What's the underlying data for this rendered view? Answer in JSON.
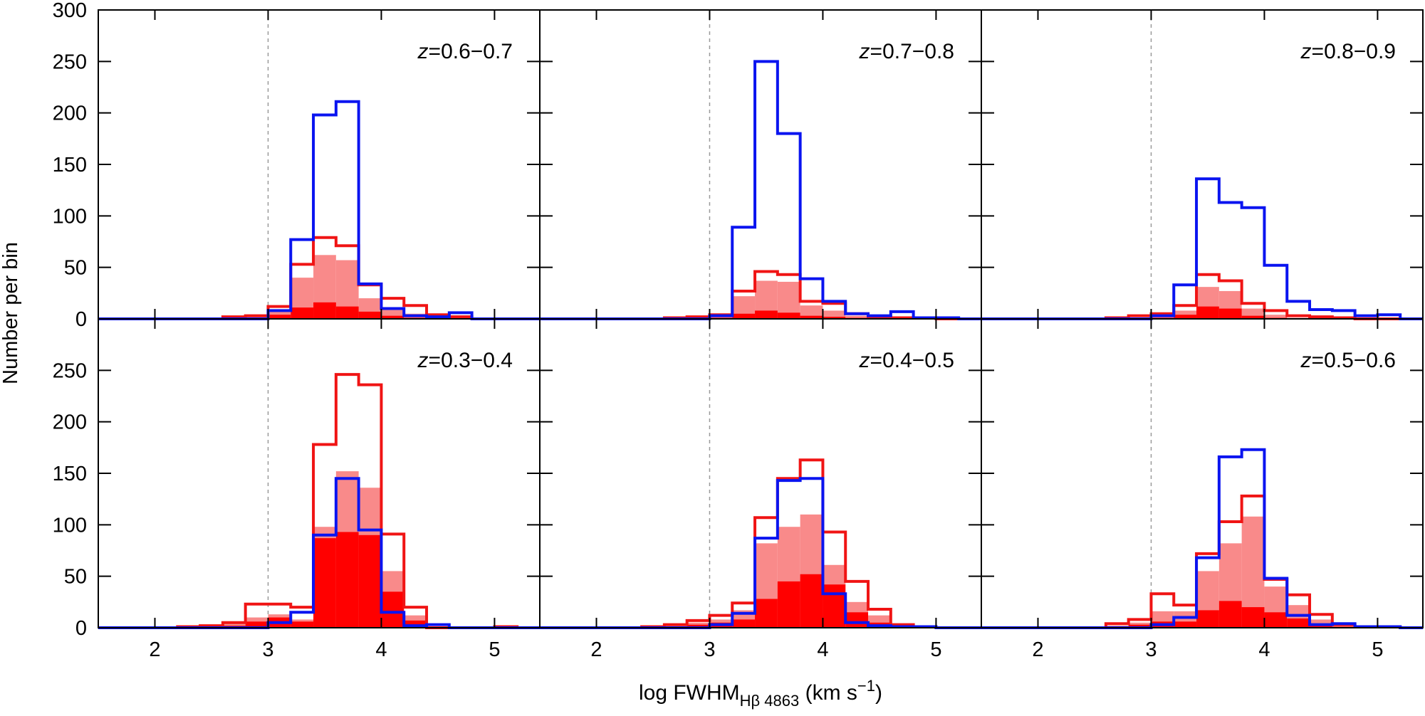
{
  "chart_data": {
    "type": "histogram-grid",
    "ylabel": "Number per bin",
    "xlabel": {
      "prefix": "log FWHM",
      "subscript": "Hβ 4863",
      "unit_prefix": " (km s",
      "unit_superscript": "−1",
      "unit_suffix": ")"
    },
    "xlim": [
      1.5,
      5.4
    ],
    "bin_edges": [
      1.6,
      1.8,
      2.0,
      2.2,
      2.4,
      2.6,
      2.8,
      3.0,
      3.2,
      3.4,
      3.6,
      3.8,
      4.0,
      4.2,
      4.4,
      4.6,
      4.8,
      5.0,
      5.2,
      5.4
    ],
    "x_ticks": [
      {
        "value": 2,
        "label": "2"
      },
      {
        "value": 3,
        "label": "3"
      },
      {
        "value": 4,
        "label": "4"
      },
      {
        "value": 5,
        "label": "5"
      }
    ],
    "reference_line_x": 3.0,
    "top_row_ylim": [
      0,
      300
    ],
    "bottom_row_ylim": [
      0,
      300
    ],
    "top_row_yticks": [
      "0",
      "50",
      "100",
      "150",
      "200",
      "250",
      "300"
    ],
    "bottom_row_yticks": [
      "0",
      "50",
      "100",
      "150",
      "200",
      "250"
    ],
    "y_tick_values": [
      0,
      50,
      100,
      150,
      200,
      250,
      300
    ],
    "colors": {
      "blue": "#0a14f0",
      "red": "#f01414",
      "light_red": "#f98a8a",
      "solid_red": "#ff0000",
      "reference": "#999999"
    },
    "panels": [
      {
        "row": 0,
        "col": 0,
        "label_prefix": "z",
        "label_range": "=0.6−0.7",
        "blue_outline": [
          0,
          0,
          0,
          0,
          0,
          0,
          0,
          8,
          77,
          198,
          211,
          34,
          10,
          3,
          2,
          6,
          0,
          0,
          0
        ],
        "red_outline": [
          0,
          0,
          0,
          0,
          0,
          2,
          3,
          12,
          53,
          79,
          71,
          33,
          20,
          13,
          4,
          2,
          0,
          0,
          0
        ],
        "light_red_fill": [
          0,
          0,
          0,
          0,
          0,
          1,
          2,
          8,
          40,
          62,
          57,
          20,
          10,
          5,
          2,
          1,
          0,
          0,
          0
        ],
        "solid_red_fill": [
          0,
          0,
          0,
          0,
          0,
          0,
          1,
          4,
          11,
          16,
          12,
          7,
          3,
          1,
          0,
          0,
          0,
          0,
          0
        ]
      },
      {
        "row": 0,
        "col": 1,
        "label_prefix": "z",
        "label_range": "=0.7−0.8",
        "blue_outline": [
          0,
          0,
          0,
          0,
          0,
          0,
          0,
          3,
          89,
          250,
          180,
          39,
          17,
          5,
          3,
          7,
          1,
          1,
          0
        ],
        "red_outline": [
          0,
          0,
          0,
          0,
          0,
          1,
          2,
          4,
          27,
          46,
          43,
          17,
          15,
          5,
          2,
          1,
          1,
          0,
          0
        ],
        "light_red_fill": [
          0,
          0,
          0,
          0,
          0,
          0,
          1,
          2,
          22,
          37,
          36,
          13,
          8,
          3,
          1,
          0,
          0,
          0,
          0
        ],
        "solid_red_fill": [
          0,
          0,
          0,
          0,
          0,
          0,
          0,
          1,
          5,
          8,
          6,
          3,
          2,
          1,
          0,
          0,
          0,
          0,
          0
        ]
      },
      {
        "row": 0,
        "col": 2,
        "label_prefix": "z",
        "label_range": "=0.8−0.9",
        "blue_outline": [
          0,
          0,
          0,
          0,
          0,
          0,
          0,
          3,
          33,
          136,
          113,
          108,
          52,
          17,
          9,
          8,
          3,
          4,
          0
        ],
        "red_outline": [
          0,
          0,
          0,
          0,
          0,
          1,
          3,
          5,
          13,
          43,
          37,
          15,
          8,
          3,
          2,
          1,
          0,
          0,
          0
        ],
        "light_red_fill": [
          0,
          0,
          0,
          0,
          0,
          0,
          1,
          2,
          8,
          31,
          27,
          10,
          4,
          1,
          0,
          0,
          0,
          0,
          0
        ],
        "solid_red_fill": [
          0,
          0,
          0,
          0,
          0,
          0,
          0,
          1,
          4,
          12,
          10,
          3,
          1,
          0,
          0,
          0,
          0,
          0,
          0
        ]
      },
      {
        "row": 1,
        "col": 0,
        "label_prefix": "z",
        "label_range": "=0.3−0.4",
        "blue_outline": [
          0,
          0,
          0,
          0,
          0,
          0,
          0,
          5,
          15,
          90,
          145,
          95,
          15,
          2,
          3,
          0,
          0,
          0,
          0
        ],
        "red_outline": [
          0,
          0,
          0,
          1,
          2,
          5,
          23,
          23,
          20,
          178,
          246,
          236,
          91,
          20,
          0,
          0,
          0,
          1,
          0
        ],
        "light_red_fill": [
          0,
          0,
          0,
          1,
          2,
          4,
          10,
          13,
          8,
          98,
          152,
          136,
          55,
          12,
          0,
          0,
          0,
          0,
          0
        ],
        "solid_red_fill": [
          0,
          0,
          0,
          0,
          1,
          2,
          6,
          10,
          6,
          87,
          93,
          90,
          35,
          7,
          0,
          0,
          0,
          0,
          0
        ]
      },
      {
        "row": 1,
        "col": 1,
        "label_prefix": "z",
        "label_range": "=0.4−0.5",
        "blue_outline": [
          0,
          0,
          0,
          0,
          0,
          0,
          0,
          3,
          14,
          87,
          143,
          145,
          33,
          5,
          2,
          1,
          1,
          0,
          0
        ],
        "red_outline": [
          0,
          0,
          0,
          0,
          1,
          3,
          7,
          12,
          24,
          107,
          145,
          163,
          93,
          45,
          18,
          3,
          1,
          0,
          0
        ],
        "light_red_fill": [
          0,
          0,
          0,
          0,
          1,
          2,
          5,
          8,
          17,
          82,
          98,
          110,
          61,
          25,
          12,
          2,
          0,
          0,
          0
        ],
        "solid_red_fill": [
          0,
          0,
          0,
          0,
          0,
          1,
          3,
          5,
          8,
          28,
          45,
          52,
          42,
          15,
          5,
          1,
          0,
          0,
          0
        ]
      },
      {
        "row": 1,
        "col": 2,
        "label_prefix": "z",
        "label_range": "=0.5−0.6",
        "blue_outline": [
          0,
          0,
          0,
          0,
          0,
          0,
          0,
          3,
          10,
          68,
          166,
          173,
          48,
          12,
          3,
          4,
          1,
          1,
          0
        ],
        "red_outline": [
          0,
          0,
          0,
          0,
          0,
          4,
          8,
          33,
          22,
          72,
          103,
          128,
          47,
          32,
          13,
          3,
          1,
          1,
          0
        ],
        "light_red_fill": [
          0,
          0,
          0,
          0,
          0,
          2,
          5,
          16,
          16,
          55,
          82,
          108,
          40,
          22,
          8,
          2,
          1,
          0,
          0
        ],
        "solid_red_fill": [
          0,
          0,
          0,
          0,
          0,
          1,
          3,
          6,
          6,
          17,
          26,
          20,
          15,
          9,
          3,
          1,
          0,
          0,
          0
        ]
      }
    ]
  }
}
